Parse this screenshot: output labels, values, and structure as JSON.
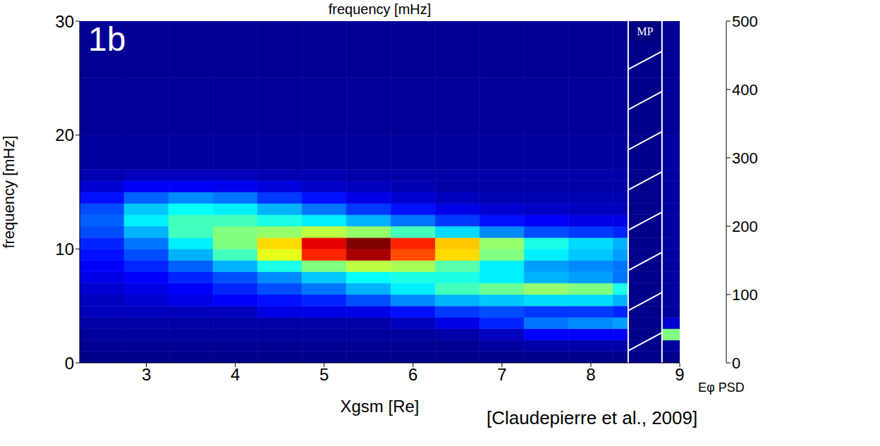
{
  "chart_data": {
    "type": "heatmap",
    "title": "frequency [mHz]",
    "panel_label": "1b",
    "x_label": "Xgsm [Re]",
    "y_label": "frequency [mHz]",
    "source": "[Claudepierre et al., 2009]",
    "xlim": [
      2.25,
      9
    ],
    "xticks": [
      3,
      4,
      5,
      6,
      7,
      8,
      9
    ],
    "ylim": [
      0,
      30
    ],
    "yticks": [
      0,
      10,
      20,
      30
    ],
    "x_edges": [
      2.25,
      2.75,
      3.25,
      3.75,
      4.25,
      4.75,
      5.25,
      5.75,
      6.25,
      6.75,
      7.25,
      7.75,
      8.25,
      8.42,
      8.8,
      9
    ],
    "y_edges": [
      0,
      1,
      2,
      3,
      4,
      5,
      6,
      7,
      8,
      9,
      10,
      11,
      12,
      13,
      14,
      15,
      16,
      17,
      20,
      25,
      30
    ],
    "z": [
      [
        5,
        5,
        5,
        5,
        5,
        5,
        5,
        5,
        5,
        5,
        5,
        5,
        5,
        5,
        5
      ],
      [
        10,
        10,
        10,
        10,
        10,
        10,
        10,
        10,
        10,
        15,
        20,
        20,
        20,
        5,
        15
      ],
      [
        15,
        15,
        15,
        15,
        15,
        15,
        15,
        15,
        20,
        30,
        60,
        60,
        60,
        5,
        250
      ],
      [
        20,
        20,
        20,
        20,
        20,
        20,
        20,
        30,
        50,
        80,
        120,
        130,
        140,
        5,
        40
      ],
      [
        30,
        30,
        30,
        30,
        50,
        50,
        50,
        70,
        90,
        100,
        90,
        90,
        80,
        5,
        15
      ],
      [
        30,
        40,
        50,
        60,
        70,
        80,
        100,
        130,
        150,
        160,
        170,
        170,
        150,
        5,
        15
      ],
      [
        40,
        50,
        60,
        80,
        100,
        120,
        150,
        180,
        220,
        240,
        260,
        250,
        200,
        5,
        15
      ],
      [
        50,
        60,
        80,
        100,
        130,
        160,
        190,
        200,
        200,
        180,
        150,
        140,
        120,
        5,
        15
      ],
      [
        60,
        80,
        110,
        150,
        200,
        250,
        280,
        270,
        230,
        180,
        140,
        130,
        120,
        5,
        15
      ],
      [
        70,
        100,
        150,
        220,
        300,
        420,
        480,
        400,
        330,
        250,
        180,
        160,
        140,
        5,
        15
      ],
      [
        80,
        120,
        180,
        250,
        330,
        450,
        500,
        420,
        340,
        260,
        200,
        170,
        150,
        5,
        15
      ],
      [
        100,
        150,
        220,
        250,
        260,
        280,
        260,
        220,
        170,
        130,
        100,
        90,
        80,
        5,
        15
      ],
      [
        110,
        180,
        220,
        220,
        200,
        180,
        150,
        120,
        90,
        70,
        60,
        50,
        50,
        5,
        15
      ],
      [
        100,
        160,
        190,
        180,
        150,
        120,
        90,
        70,
        50,
        40,
        35,
        30,
        30,
        5,
        15
      ],
      [
        70,
        110,
        130,
        120,
        90,
        70,
        50,
        40,
        30,
        25,
        25,
        25,
        25,
        5,
        15
      ],
      [
        40,
        60,
        60,
        55,
        45,
        35,
        30,
        25,
        20,
        20,
        20,
        20,
        20,
        5,
        15
      ],
      [
        25,
        30,
        30,
        30,
        25,
        25,
        20,
        20,
        20,
        20,
        20,
        20,
        20,
        5,
        15
      ],
      [
        15,
        15,
        15,
        15,
        15,
        15,
        15,
        15,
        15,
        15,
        15,
        15,
        15,
        5,
        15
      ],
      [
        12,
        12,
        12,
        12,
        12,
        12,
        12,
        12,
        12,
        12,
        12,
        12,
        12,
        5,
        12
      ],
      [
        10,
        10,
        10,
        10,
        10,
        10,
        10,
        10,
        10,
        10,
        10,
        10,
        10,
        5,
        10
      ]
    ],
    "colorbar": {
      "label": "Eφ PSD",
      "lim": [
        0,
        500
      ],
      "ticks": [
        0,
        100,
        200,
        300,
        400,
        500
      ]
    },
    "annotations": [
      {
        "text": "MP",
        "x_range": [
          8.42,
          8.8
        ]
      }
    ]
  }
}
